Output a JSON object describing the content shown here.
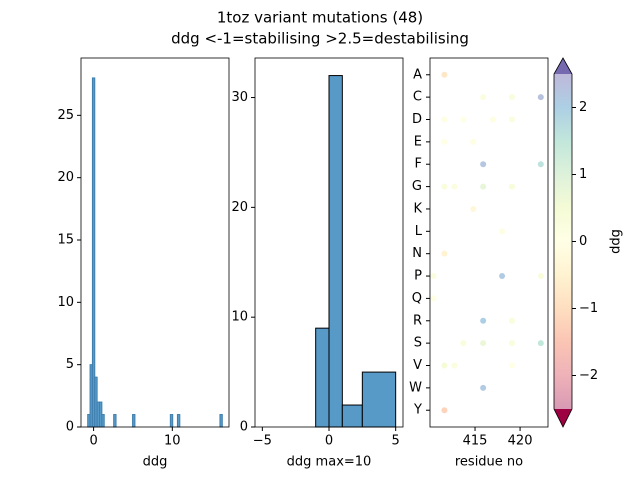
{
  "title": "1toz variant mutations (48)",
  "subtitle": "ddg <-1=stabilising >2.5=destabilising",
  "chart_data": [
    {
      "type": "histogram",
      "xlabel": "ddg",
      "color": "#5799c7",
      "edgecolor": "#3f7fae",
      "bins": [
        -0.75,
        -0.45,
        -0.15,
        0.15,
        0.45,
        0.75,
        1.05,
        1.35,
        1.65,
        1.95,
        2.25,
        2.55,
        2.85,
        3.15,
        3.45,
        3.75,
        4.05,
        4.35,
        4.65,
        4.95,
        5.25,
        5.55,
        5.85,
        6.15,
        6.45,
        6.75,
        7.05,
        7.35,
        7.65,
        7.95,
        8.25,
        8.55,
        8.85,
        9.15,
        9.45,
        9.75,
        10.05,
        10.35,
        10.65,
        10.95,
        11.25,
        11.55,
        11.85,
        12.15,
        12.45,
        12.75,
        13.05,
        13.35,
        13.65,
        13.95,
        14.25,
        14.55,
        14.85,
        15.15,
        15.45,
        15.75,
        16.05,
        16.35
      ],
      "values": [
        1,
        5,
        28,
        4,
        2,
        2,
        1,
        0,
        0,
        0,
        0,
        1,
        0,
        0,
        0,
        0,
        0,
        0,
        0,
        1,
        0,
        0,
        0,
        0,
        0,
        0,
        0,
        0,
        0,
        0,
        0,
        0,
        0,
        0,
        0,
        1,
        0,
        0,
        1,
        0,
        0,
        0,
        0,
        0,
        0,
        0,
        0,
        0,
        0,
        0,
        0,
        0,
        0,
        0,
        0,
        0,
        1
      ],
      "xlim": [
        -1.6,
        17.2
      ],
      "xticks": [
        0,
        10
      ],
      "ylim": [
        0,
        29.6
      ],
      "yticks": [
        0,
        5,
        10,
        15,
        20,
        25
      ]
    },
    {
      "type": "histogram",
      "xlabel": "ddg max=10",
      "color": "#5799c7",
      "edgecolor": "#000000",
      "bins": [
        -5,
        -1,
        0,
        1,
        2.5,
        5
      ],
      "values": [
        0,
        9,
        32,
        2,
        5
      ],
      "xlim": [
        -5.55,
        5.55
      ],
      "xticks": [
        {
          "value": -5,
          "label": "−5"
        },
        0,
        5
      ],
      "ylim": [
        0,
        33.6
      ],
      "yticks": [
        0,
        10,
        20,
        30
      ]
    },
    {
      "type": "scatter",
      "xlabel": "residue no",
      "categories": [
        "A",
        "C",
        "D",
        "E",
        "F",
        "G",
        "K",
        "L",
        "N",
        "P",
        "Q",
        "R",
        "S",
        "V",
        "W",
        "Y"
      ],
      "x": [
        411.6,
        415.9,
        419.1,
        422.3,
        411.6,
        413.7,
        417.0,
        419.1,
        411.6,
        414.8,
        415.9,
        422.3,
        411.6,
        412.7,
        415.9,
        419.1,
        414.8,
        418.0,
        411.6,
        410.4,
        418.0,
        422.3,
        410.4,
        415.9,
        419.1,
        413.7,
        415.9,
        419.1,
        422.3,
        411.6,
        412.7,
        419.1,
        415.9,
        411.6
      ],
      "y": [
        "A",
        "C",
        "C",
        "C",
        "D",
        "D",
        "D",
        "D",
        "E",
        "E",
        "F",
        "F",
        "G",
        "G",
        "G",
        "G",
        "K",
        "L",
        "N",
        "P",
        "P",
        "P",
        "Q",
        "R",
        "R",
        "S",
        "S",
        "S",
        "S",
        "V",
        "V",
        "V",
        "W",
        "Y"
      ],
      "values": [
        -0.8,
        0.2,
        0.3,
        2.3,
        0.1,
        0.0,
        0.1,
        0.2,
        0.0,
        0.1,
        2.2,
        1.6,
        0.3,
        0.2,
        0.8,
        0.4,
        -0.3,
        0.1,
        -0.5,
        0.2,
        2.1,
        0.3,
        0.1,
        2.0,
        0.3,
        0.3,
        0.7,
        0.3,
        1.5,
        0.5,
        0.2,
        0.0,
        2.1,
        -1.2
      ],
      "xlim": [
        410.0,
        423.1
      ],
      "xticks": [
        415,
        420
      ],
      "alpha": 0.4,
      "colormap": [
        "#9e0142",
        "#d53e4f",
        "#f46d43",
        "#fdae61",
        "#fee08b",
        "#ffffbf",
        "#e6f598",
        "#abdda4",
        "#66c2a5",
        "#3288bd",
        "#5e4fa2"
      ],
      "colorbar": {
        "label": "ddg",
        "lim": [
          -2.5,
          2.5
        ],
        "ticks": [
          {
            "value": -2,
            "label": "−2"
          },
          {
            "value": -1,
            "label": "−1"
          },
          0,
          1,
          2
        ]
      }
    }
  ]
}
